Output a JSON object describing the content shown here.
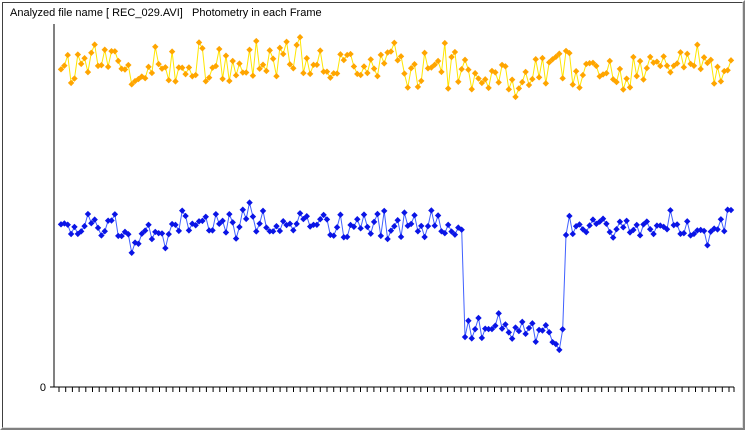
{
  "title": "Analyzed file name [ REC_029.AVI]   Photometry in each Frame",
  "colors": {
    "upper_series": "#ffa500",
    "upper_line": "#ffe600",
    "lower_series": "#0a14e6",
    "lower_line": "#4060ff"
  },
  "chart_data": {
    "type": "line",
    "title": "Analyzed file name [ REC_029.AVI]   Photometry in each Frame",
    "xlabel": "",
    "ylabel": "",
    "y_tick_labels": [
      "0"
    ],
    "ylim": [
      0,
      100
    ],
    "grid": false,
    "legend": "none",
    "x_count": 200,
    "series": [
      {
        "role": "upper",
        "mean": 88,
        "noise": 4.5,
        "dip_start": null,
        "dip_end": null,
        "dip_level": null
      },
      {
        "role": "lower",
        "mean": 44,
        "noise": 3.0,
        "dip_start": 120,
        "dip_end": 149,
        "dip_level": 16
      }
    ]
  }
}
